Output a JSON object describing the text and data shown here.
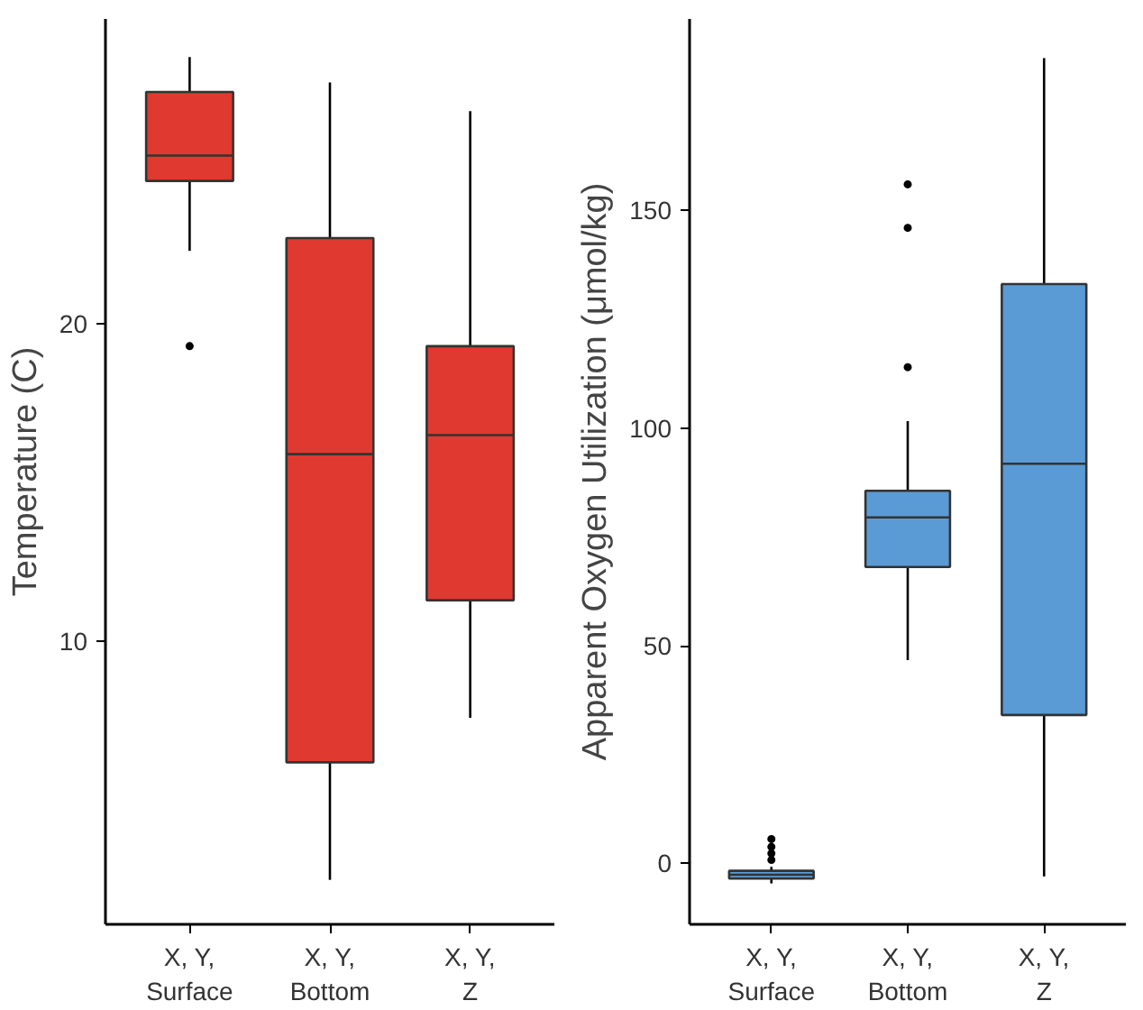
{
  "chart_data": [
    {
      "type": "box",
      "ylabel": "Temperature (C)",
      "categories": [
        "X, Y,\nSurface",
        "X, Y,\nBottom",
        "X, Y,\nZ"
      ],
      "ylim": [
        1.1,
        29.6
      ],
      "yticks": [
        10,
        20
      ],
      "grid": false,
      "series": [
        {
          "color": "#e0392f",
          "boxes": [
            {
              "low": 22.3,
              "q1": 24.5,
              "median": 25.3,
              "q3": 27.3,
              "high": 28.4,
              "outliers": [
                19.3
              ]
            },
            {
              "low": 2.5,
              "q1": 6.2,
              "median": 15.9,
              "q3": 22.7,
              "high": 27.6
            },
            {
              "low": 7.6,
              "q1": 11.3,
              "median": 16.5,
              "q3": 19.3,
              "high": 26.7
            }
          ]
        }
      ]
    },
    {
      "type": "box",
      "ylabel": "Apparent Oxygen Utilization (μmol/kg)",
      "categories": [
        "X, Y,\nSurface",
        "X, Y,\nBottom",
        "X, Y,\nZ"
      ],
      "ylim": [
        -14,
        194
      ],
      "yticks": [
        0,
        50,
        100,
        150
      ],
      "grid": false,
      "series": [
        {
          "color": "#5b9bd5",
          "boxes": [
            {
              "low": -4.6,
              "q1": -3.5,
              "median": -2.6,
              "q3": -1.7,
              "high": -0.8,
              "outliers": [
                0.8,
                2.3,
                3.8,
                5.6
              ]
            },
            {
              "low": 46.7,
              "q1": 68.1,
              "median": 79.5,
              "q3": 85.6,
              "high": 101.6,
              "outliers": [
                114,
                146,
                156
              ]
            },
            {
              "low": -3,
              "q1": 34.1,
              "median": 91.8,
              "q3": 133.1,
              "high": 185
            }
          ]
        }
      ]
    }
  ]
}
